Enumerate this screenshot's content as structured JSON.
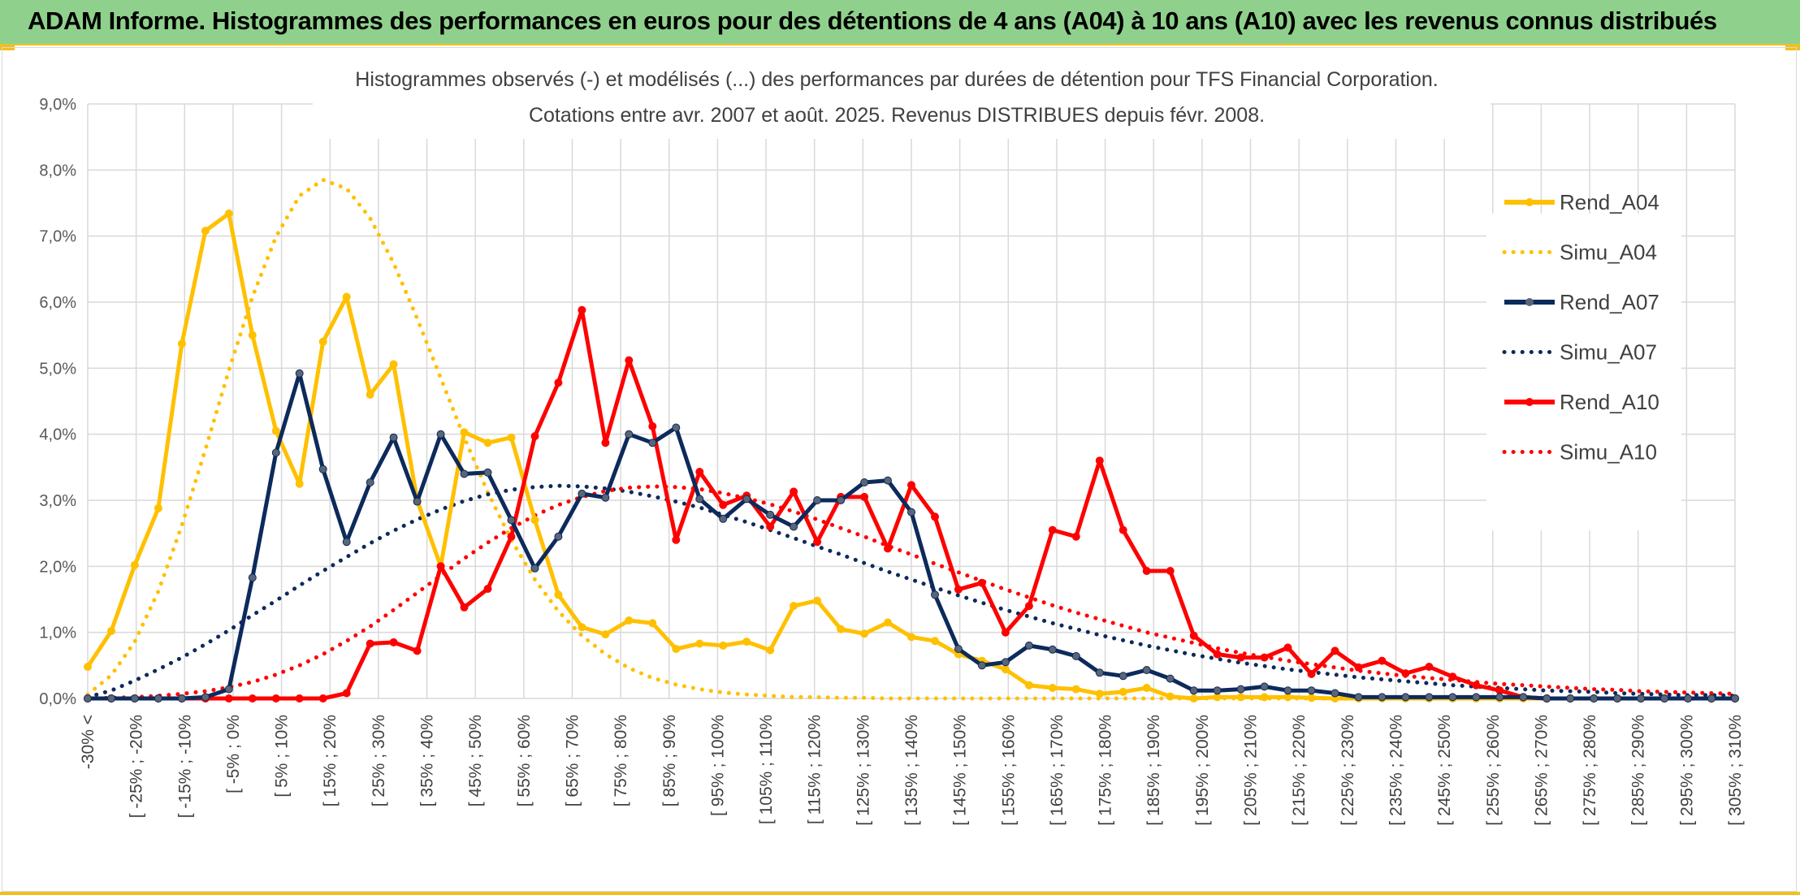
{
  "page_title": "ADAM Informe. Histogrammes des performances en euros pour des détentions de 4 ans (A04) à 10 ans (A10) avec les revenus connus distribués",
  "colors": {
    "banner": "#8fd18c",
    "a04": "#ffc000",
    "a07": "#0d2a5c",
    "a10": "#ff0000",
    "grid": "#d9d9d9"
  },
  "chart_data": {
    "type": "line",
    "title": "Histogrammes observés (-) et modélisés (...) des performances par durées de détention pour TFS Financial Corporation.",
    "subtitle": "Cotations entre avr. 2007 et août. 2025. Revenus DISTRIBUES depuis févr. 2008.",
    "xlabel": "",
    "ylabel": "",
    "ylim": [
      0,
      9
    ],
    "y_ticks": [
      "0,0%",
      "1,0%",
      "2,0%",
      "3,0%",
      "4,0%",
      "5,0%",
      "6,0%",
      "7,0%",
      "8,0%",
      "9,0%"
    ],
    "grid": true,
    "legend_position": "right",
    "x_labels": [
      "-30% <",
      "[ -25% ; -20%",
      "[ -15% ; -10%",
      "[ -5% ; 0%",
      "[ 5% ; 10%",
      "[ 15% ; 20%",
      "[ 25% ; 30%",
      "[ 35% ; 40%",
      "[ 45% ; 50%",
      "[ 55% ; 60%",
      "[ 65% ; 70%",
      "[ 75% ; 80%",
      "[ 85% ; 90%",
      "[ 95% ; 100%",
      "[ 105% ; 110%",
      "[ 115% ; 120%",
      "[ 125% ; 130%",
      "[ 135% ; 140%",
      "[ 145% ; 150%",
      "[ 155% ; 160%",
      "[ 165% ; 170%",
      "[ 175% ; 180%",
      "[ 185% ; 190%",
      "[ 195% ; 200%",
      "[ 205% ; 210%",
      "[ 215% ; 220%",
      "[ 225% ; 230%",
      "[ 235% ; 240%",
      "[ 245% ; 250%",
      "[ 255% ; 260%",
      "[ 265% ; 270%",
      "[ 275% ; 280%",
      "[ 285% ; 290%",
      "[ 295% ; 300%",
      "[ 305% ; 310%"
    ],
    "series": [
      {
        "name": "Rend_A04",
        "style": "solid",
        "color": "#ffc000",
        "values": [
          0.48,
          1.02,
          2.02,
          2.88,
          5.37,
          7.08,
          7.34,
          5.5,
          4.05,
          3.25,
          5.4,
          6.08,
          4.6,
          5.06,
          3.0,
          2.0,
          4.03,
          3.87,
          3.95,
          2.7,
          1.57,
          1.08,
          0.97,
          1.18,
          1.14,
          0.75,
          0.83,
          0.8,
          0.86,
          0.73,
          1.4,
          1.48,
          1.05,
          0.98,
          1.15,
          0.93,
          0.87,
          0.67,
          0.57,
          0.44,
          0.2,
          0.16,
          0.14,
          0.07,
          0.1,
          0.16,
          0.03,
          0.0,
          0.02,
          0.02,
          0.02,
          0.02,
          0.01,
          0.0,
          0.0,
          0.0,
          0.0,
          0.0,
          0.0,
          0.0,
          0.0,
          0.0,
          0.0,
          0.0,
          0.0,
          0.0,
          0.0,
          0.0,
          0.0,
          0.0,
          0.0
        ]
      },
      {
        "name": "Simu_A04",
        "style": "dotted",
        "color": "#ffc000",
        "values": [
          0.06,
          0.35,
          0.86,
          1.62,
          2.62,
          3.77,
          4.97,
          6.08,
          6.99,
          7.61,
          7.85,
          7.72,
          7.27,
          6.59,
          5.75,
          4.85,
          3.95,
          3.12,
          2.4,
          1.8,
          1.32,
          0.95,
          0.67,
          0.46,
          0.31,
          0.21,
          0.14,
          0.09,
          0.06,
          0.04,
          0.02,
          0.02,
          0.01,
          0.01,
          0.0,
          0.0,
          0.0,
          0.0,
          0.0,
          0.0,
          0.0,
          0.0,
          0.0,
          0.0,
          0.0,
          0.0,
          0.0,
          0.0,
          0.0,
          0.0,
          0.0,
          0.0,
          0.0,
          0.0,
          0.0,
          0.0,
          0.0,
          0.0,
          0.0,
          0.0,
          0.0,
          0.0,
          0.0,
          0.0,
          0.0,
          0.0,
          0.0,
          0.0,
          0.0,
          0.0,
          0.0
        ]
      },
      {
        "name": "Rend_A07",
        "style": "solid",
        "color": "#0d2a5c",
        "values": [
          0.0,
          0.0,
          0.0,
          0.0,
          0.0,
          0.02,
          0.14,
          1.83,
          3.72,
          4.92,
          3.47,
          2.37,
          3.27,
          3.95,
          2.98,
          4.0,
          3.4,
          3.42,
          2.7,
          1.97,
          2.45,
          3.1,
          3.04,
          4.0,
          3.87,
          4.1,
          3.02,
          2.72,
          3.02,
          2.78,
          2.6,
          3.0,
          3.0,
          3.27,
          3.3,
          2.82,
          1.57,
          0.75,
          0.5,
          0.55,
          0.8,
          0.74,
          0.64,
          0.39,
          0.34,
          0.43,
          0.3,
          0.12,
          0.12,
          0.14,
          0.18,
          0.12,
          0.12,
          0.08,
          0.02,
          0.02,
          0.02,
          0.02,
          0.02,
          0.02,
          0.02,
          0.02,
          0.0,
          0.0,
          0.0,
          0.0,
          0.0,
          0.0,
          0.0,
          0.0,
          0.0
        ]
      },
      {
        "name": "Simu_A07",
        "style": "dotted",
        "color": "#0d2a5c",
        "values": [
          0.02,
          0.12,
          0.27,
          0.44,
          0.62,
          0.82,
          1.03,
          1.26,
          1.48,
          1.71,
          1.93,
          2.14,
          2.35,
          2.54,
          2.71,
          2.86,
          2.99,
          3.09,
          3.16,
          3.2,
          3.22,
          3.21,
          3.18,
          3.13,
          3.06,
          2.98,
          2.89,
          2.78,
          2.67,
          2.55,
          2.43,
          2.3,
          2.18,
          2.05,
          1.92,
          1.8,
          1.68,
          1.56,
          1.45,
          1.34,
          1.24,
          1.14,
          1.05,
          0.96,
          0.88,
          0.8,
          0.73,
          0.66,
          0.6,
          0.54,
          0.49,
          0.44,
          0.4,
          0.36,
          0.32,
          0.29,
          0.26,
          0.23,
          0.2,
          0.18,
          0.16,
          0.14,
          0.12,
          0.11,
          0.1,
          0.08,
          0.07,
          0.06,
          0.05,
          0.05,
          0.04
        ]
      },
      {
        "name": "Rend_A10",
        "style": "solid",
        "color": "#ff0000",
        "values": [
          0.0,
          0.0,
          0.0,
          0.0,
          0.0,
          0.0,
          0.0,
          0.0,
          0.0,
          0.0,
          0.0,
          0.08,
          0.83,
          0.85,
          0.72,
          2.0,
          1.38,
          1.66,
          2.45,
          3.97,
          4.78,
          5.88,
          3.87,
          5.12,
          4.12,
          2.4,
          3.43,
          2.93,
          3.07,
          2.6,
          3.13,
          2.37,
          3.05,
          3.05,
          2.27,
          3.23,
          2.75,
          1.65,
          1.75,
          1.0,
          1.4,
          2.55,
          2.45,
          3.6,
          2.55,
          1.93,
          1.93,
          0.95,
          0.67,
          0.62,
          0.62,
          0.77,
          0.37,
          0.72,
          0.47,
          0.57,
          0.38,
          0.48,
          0.33,
          0.2,
          0.12,
          0.02,
          0.0,
          0.0,
          0.0,
          0.0,
          0.0,
          0.0,
          0.0,
          0.0,
          0.0
        ]
      },
      {
        "name": "Simu_A10",
        "style": "dotted",
        "color": "#ff0000",
        "values": [
          0.0,
          0.01,
          0.02,
          0.04,
          0.07,
          0.11,
          0.17,
          0.25,
          0.36,
          0.5,
          0.67,
          0.87,
          1.09,
          1.34,
          1.6,
          1.86,
          2.12,
          2.36,
          2.58,
          2.77,
          2.93,
          3.05,
          3.14,
          3.19,
          3.21,
          3.2,
          3.17,
          3.11,
          3.03,
          2.94,
          2.83,
          2.71,
          2.58,
          2.45,
          2.31,
          2.18,
          2.04,
          1.91,
          1.78,
          1.65,
          1.53,
          1.41,
          1.3,
          1.2,
          1.1,
          1.0,
          0.92,
          0.84,
          0.76,
          0.69,
          0.63,
          0.57,
          0.52,
          0.47,
          0.42,
          0.38,
          0.34,
          0.31,
          0.28,
          0.25,
          0.22,
          0.2,
          0.18,
          0.16,
          0.14,
          0.13,
          0.11,
          0.1,
          0.09,
          0.08,
          0.07
        ]
      }
    ]
  }
}
